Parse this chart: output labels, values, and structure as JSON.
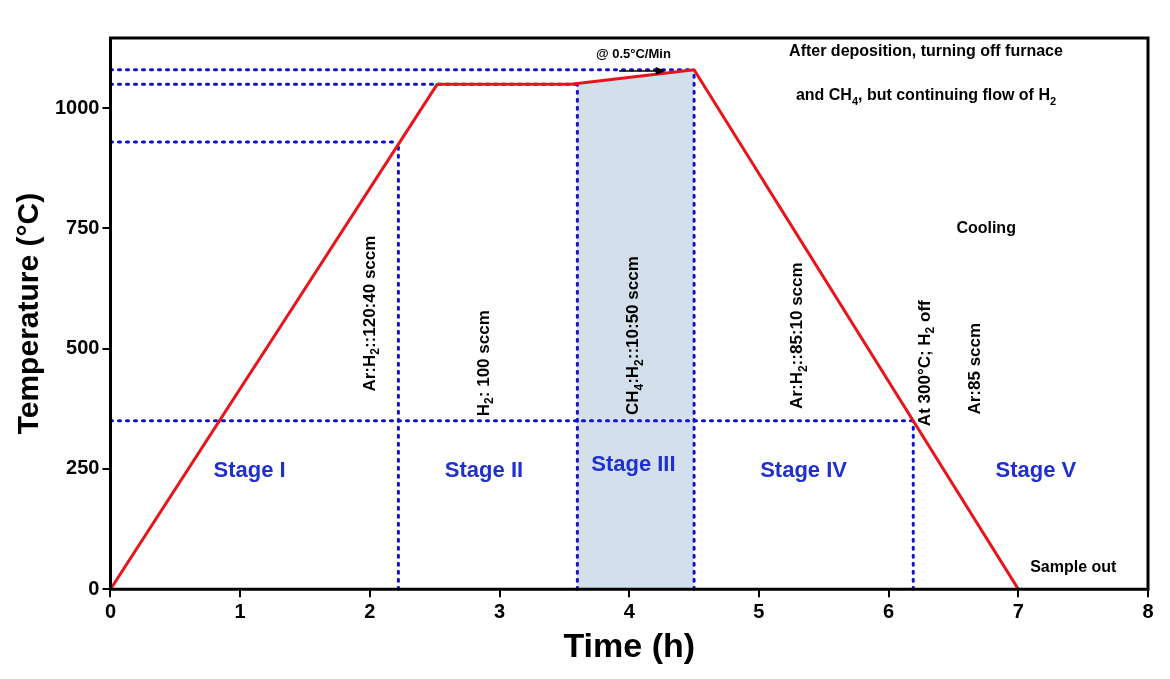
{
  "chart_data": {
    "type": "line",
    "xlabel": "Time (h)",
    "ylabel": "Temperature (°C)",
    "x": [
      0,
      2.52,
      3.55,
      4.5,
      7
    ],
    "series": [
      {
        "type": "line",
        "color": "#e8141c",
        "values": [
          0,
          1050,
          1050,
          1080,
          0
        ]
      }
    ],
    "xlim": [
      0,
      8
    ],
    "xticks": [
      0,
      1,
      2,
      3,
      4,
      5,
      6,
      7,
      8
    ],
    "ylim": [
      0,
      1146
    ],
    "yticks": [
      0,
      250,
      500,
      750,
      1000
    ],
    "grid": false,
    "legend": false,
    "marker": "none",
    "line_style": "solid",
    "bands": [
      {
        "axis": "x",
        "from": 3.6,
        "to": 4.5,
        "color": "#d3dfea"
      }
    ],
    "ref_lines": [
      {
        "axis": "y",
        "value": 1080,
        "color": "#1010d0",
        "line_style": "dotted"
      },
      {
        "axis": "y",
        "value": 1050,
        "color": "#1010d0",
        "line_style": "dotted"
      },
      {
        "axis": "y",
        "value": 930,
        "color": "#1010d0",
        "line_style": "dotted"
      },
      {
        "axis": "y",
        "value": 350,
        "color": "#1010d0",
        "line_style": "dotted"
      },
      {
        "axis": "x",
        "value": 2.22,
        "color": "#1010d0",
        "line_style": "dotted"
      },
      {
        "axis": "x",
        "value": 3.6,
        "color": "#1010d0",
        "line_style": "dotted"
      },
      {
        "axis": "x",
        "value": 4.5,
        "color": "#1010d0",
        "line_style": "dotted"
      },
      {
        "axis": "x",
        "value": 6.19,
        "color": "#1010d0",
        "line_style": "dotted"
      }
    ],
    "annotations": [
      "Stage I",
      "Stage II",
      "Stage III",
      "Stage IV",
      "Stage V",
      "Ar:H$_{2}$::120:40 sccm",
      "H$_{2}$: 100 sccm",
      "CH$_{4}$:H$_{2}$::10:50 sccm",
      "Ar:H$_{2}$::85:10 sccm",
      "At 300°C; H$_{2}$ off",
      "Ar:85 sccm",
      "Cooling",
      "@ 0.5°C/Min",
      "After deposition, turning off furnace",
      "and CH$_{4}$, but continuing flow of H$_{2}$",
      "Sample out"
    ]
  }
}
